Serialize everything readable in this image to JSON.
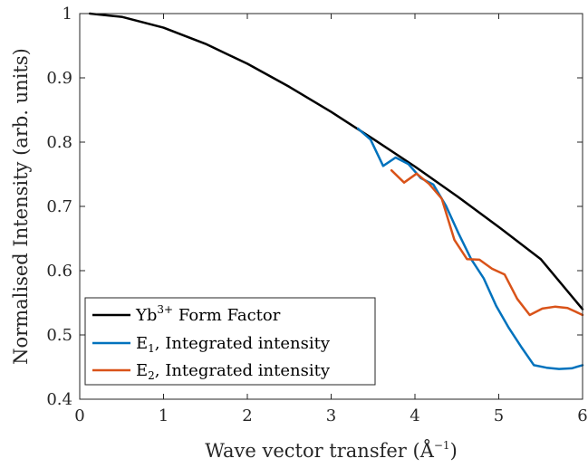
{
  "chart_data": {
    "type": "line",
    "xlabel_main": "Wave vector transfer (Å",
    "xlabel_sup": "−1",
    "xlabel_end": ")",
    "ylabel": "Normalised Intensity (arb. units)",
    "xlim": [
      0,
      6
    ],
    "ylim": [
      0.4,
      1.0
    ],
    "xticks": [
      "0",
      "1",
      "2",
      "3",
      "4",
      "5",
      "6"
    ],
    "yticks": [
      "0.4",
      "0.5",
      "0.6",
      "0.7",
      "0.8",
      "0.9",
      "1"
    ],
    "xtick_values": [
      0,
      1,
      2,
      3,
      4,
      5,
      6
    ],
    "ytick_values": [
      0.4,
      0.5,
      0.6,
      0.7,
      0.8,
      0.9,
      1.0
    ],
    "grid": false,
    "legend_position": "bottom-left",
    "series": [
      {
        "legend_main": "Yb",
        "legend_sup": "3+",
        "legend_rest": " Form Factor",
        "color": "#000000",
        "x": [
          0.12,
          0.5,
          1.0,
          1.5,
          2.0,
          2.5,
          3.0,
          3.5,
          4.0,
          4.5,
          5.0,
          5.5,
          6.0
        ],
        "y": [
          1.0,
          0.995,
          0.978,
          0.953,
          0.922,
          0.886,
          0.847,
          0.805,
          0.762,
          0.716,
          0.668,
          0.618,
          0.54
        ]
      },
      {
        "legend_main": "E",
        "legend_sub": "1",
        "legend_rest": ", Integrated intensity",
        "color": "#0072BD",
        "x": [
          3.32,
          3.47,
          3.62,
          3.77,
          3.92,
          4.07,
          4.22,
          4.37,
          4.52,
          4.67,
          4.82,
          4.97,
          5.12,
          5.27,
          5.42,
          5.57,
          5.72,
          5.87,
          6.0
        ],
        "y": [
          0.821,
          0.804,
          0.763,
          0.776,
          0.766,
          0.744,
          0.734,
          0.701,
          0.658,
          0.618,
          0.588,
          0.545,
          0.511,
          0.481,
          0.453,
          0.449,
          0.447,
          0.448,
          0.453
        ]
      },
      {
        "legend_main": "E",
        "legend_sub": "2",
        "legend_rest": ", Integrated intensity",
        "color": "#D95319",
        "x": [
          3.72,
          3.87,
          4.02,
          4.17,
          4.32,
          4.47,
          4.62,
          4.77,
          4.92,
          5.07,
          5.22,
          5.37,
          5.52,
          5.67,
          5.82,
          5.97,
          6.0
        ],
        "y": [
          0.756,
          0.737,
          0.751,
          0.735,
          0.712,
          0.648,
          0.618,
          0.617,
          0.603,
          0.594,
          0.556,
          0.531,
          0.541,
          0.544,
          0.542,
          0.533,
          0.531
        ]
      }
    ]
  }
}
